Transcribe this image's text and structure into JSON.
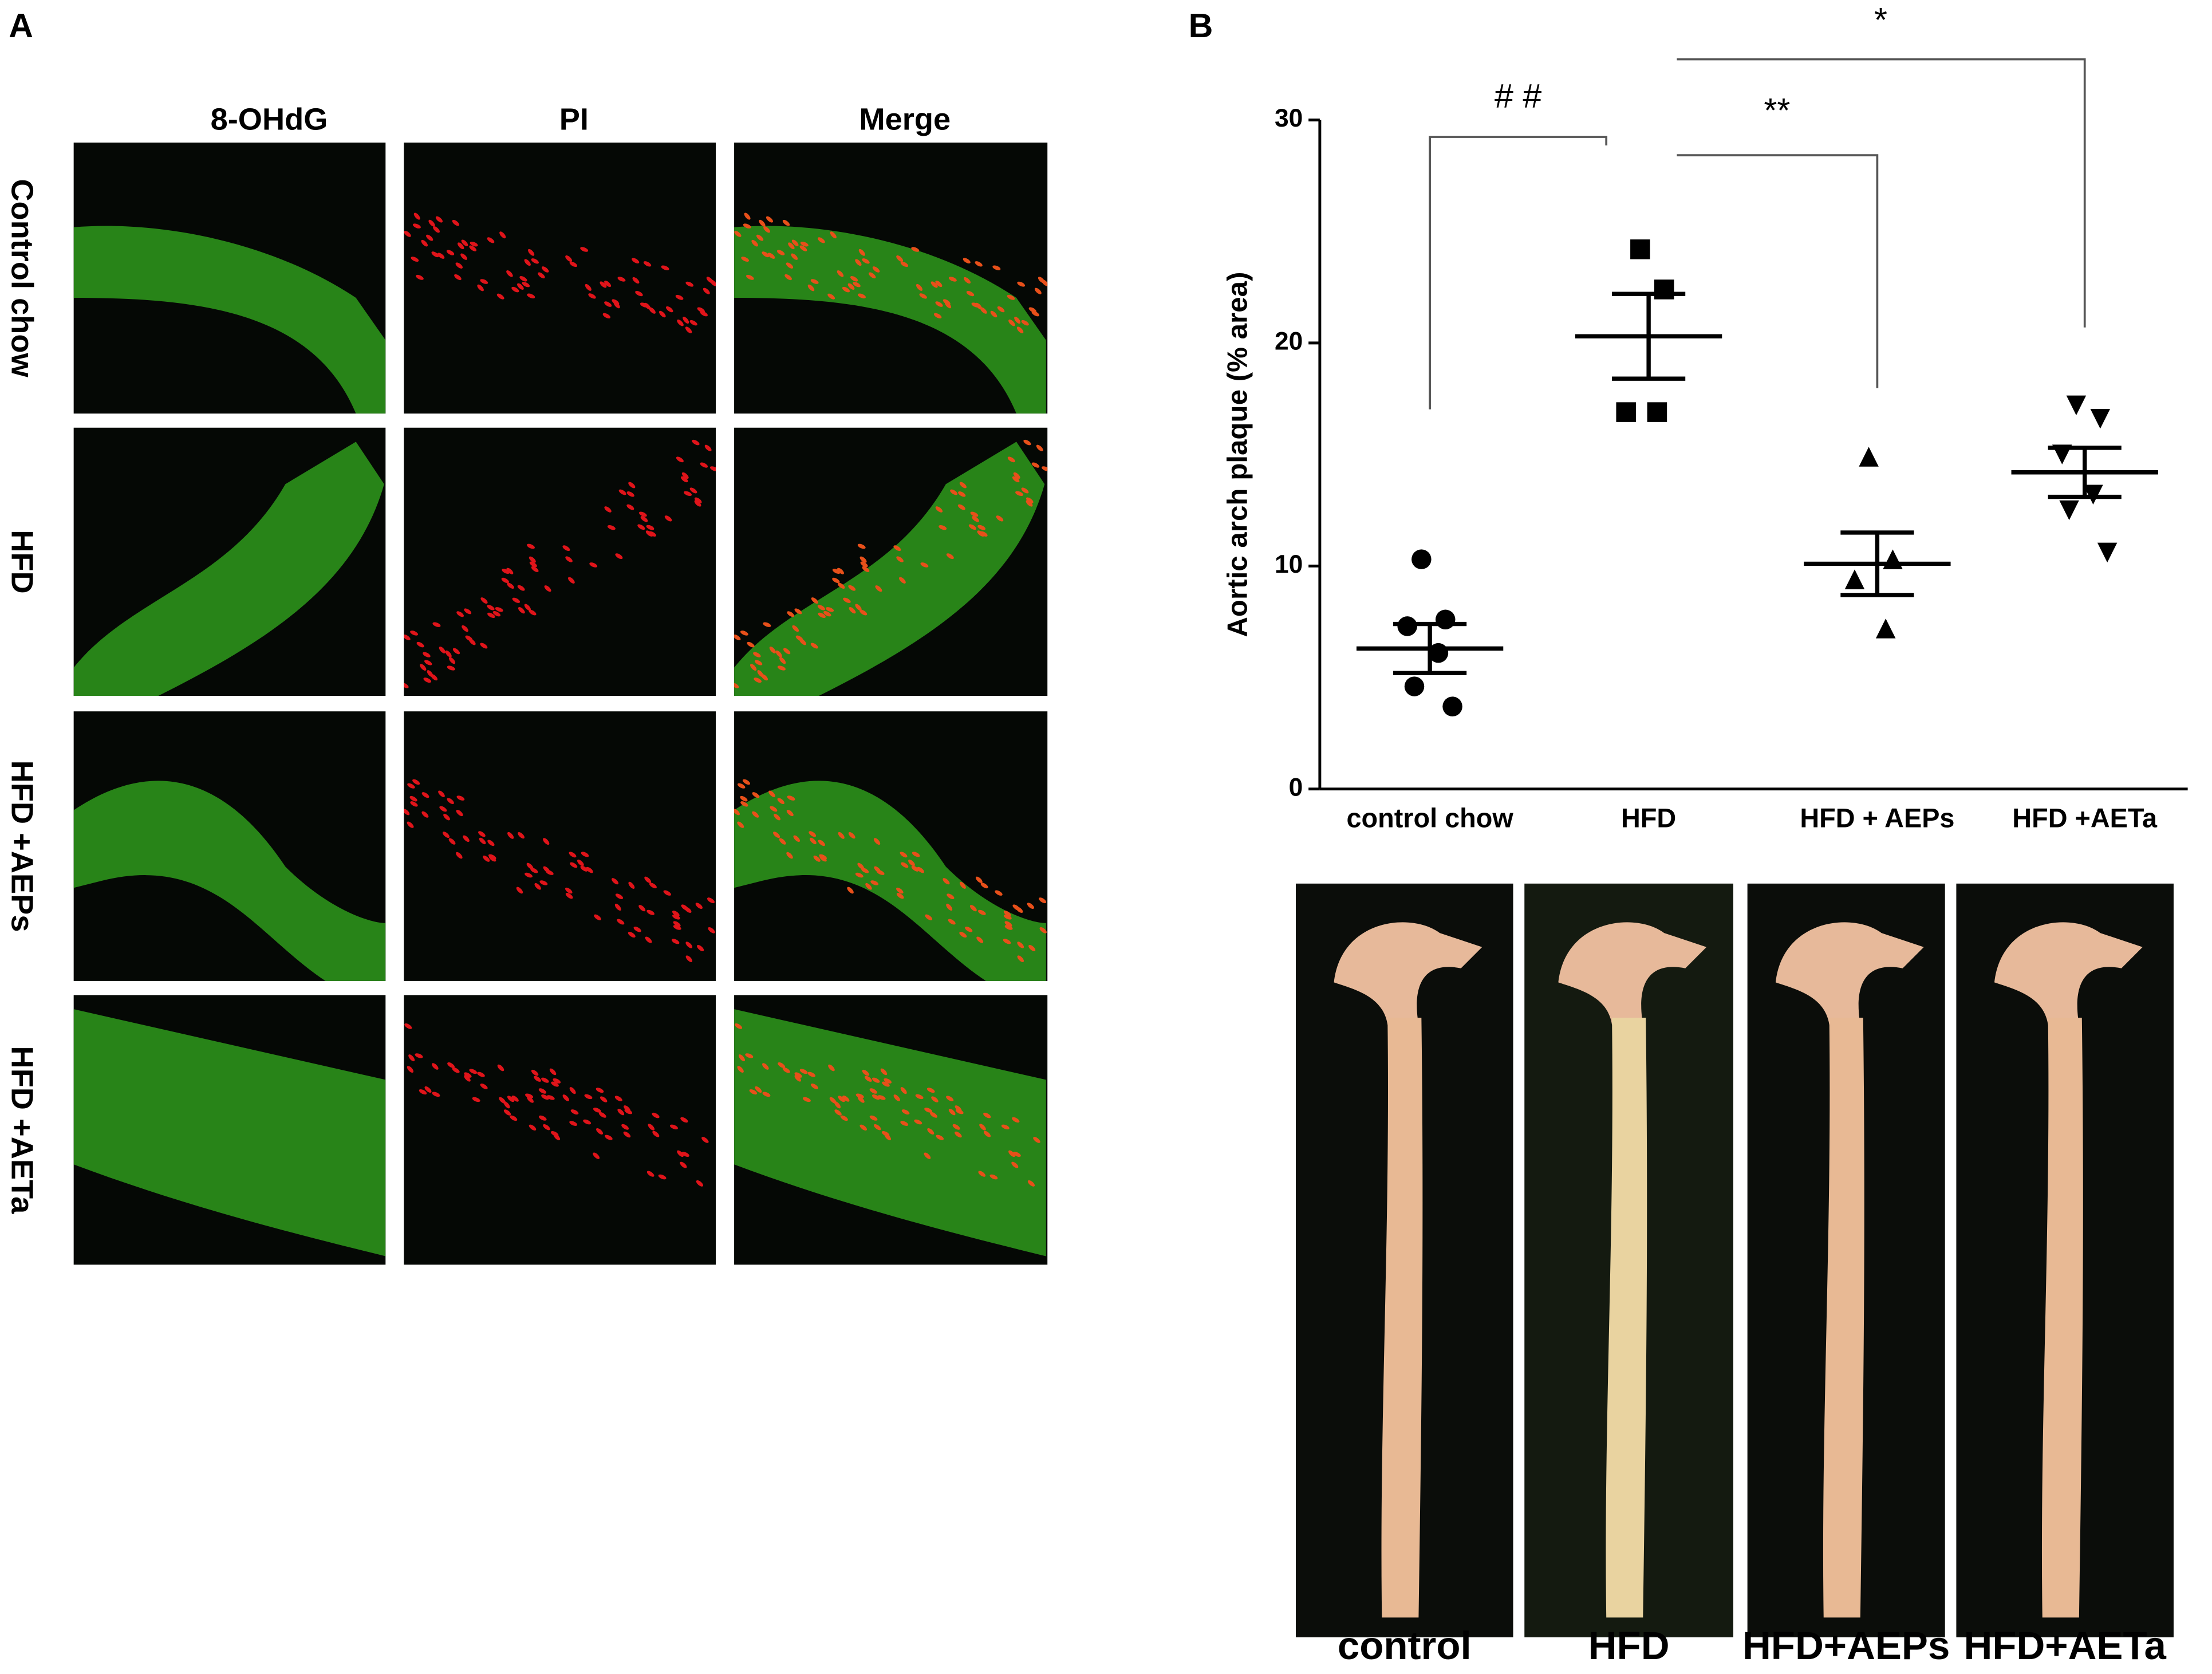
{
  "panel_a": {
    "label": "A",
    "columns": [
      "8-OHdG",
      "PI",
      "Merge"
    ],
    "rows": [
      "Control chow",
      "HFD",
      "HFD +AEPs",
      "HFD +AETa"
    ]
  },
  "chart_data": {
    "type": "dotplot",
    "label": "B",
    "ylabel": "Aortic arch plaque  (% area)",
    "categories": [
      "control chow",
      "HFD",
      "HFD + AEPs",
      "HFD +AETa"
    ],
    "markers": [
      "circle",
      "square",
      "triangle",
      "triangle-down"
    ],
    "color": "#000000",
    "points": [
      [
        10.3,
        7.6,
        7.3,
        6.1,
        4.6,
        3.7
      ],
      [
        24.2,
        22.4,
        16.9,
        16.9
      ],
      [
        14.9,
        10.3,
        9.4,
        7.2
      ],
      [
        17.2,
        16.6,
        15.0,
        13.2,
        12.5,
        10.6
      ]
    ],
    "means": [
      6.3,
      20.3,
      10.1,
      14.2
    ],
    "sem": [
      1.1,
      1.9,
      1.4,
      1.1
    ],
    "ylim": [
      0,
      30
    ],
    "yticks": [
      0,
      10,
      20,
      30
    ],
    "annotations": [
      {
        "label": "# #",
        "pair": [
          0,
          1
        ]
      },
      {
        "label": "**",
        "pair": [
          1,
          2
        ]
      },
      {
        "label": "*",
        "pair": [
          1,
          3
        ]
      }
    ]
  },
  "photos": {
    "labels": [
      "control",
      "HFD",
      "HFD+AEPs",
      "HFD+AETa"
    ]
  }
}
